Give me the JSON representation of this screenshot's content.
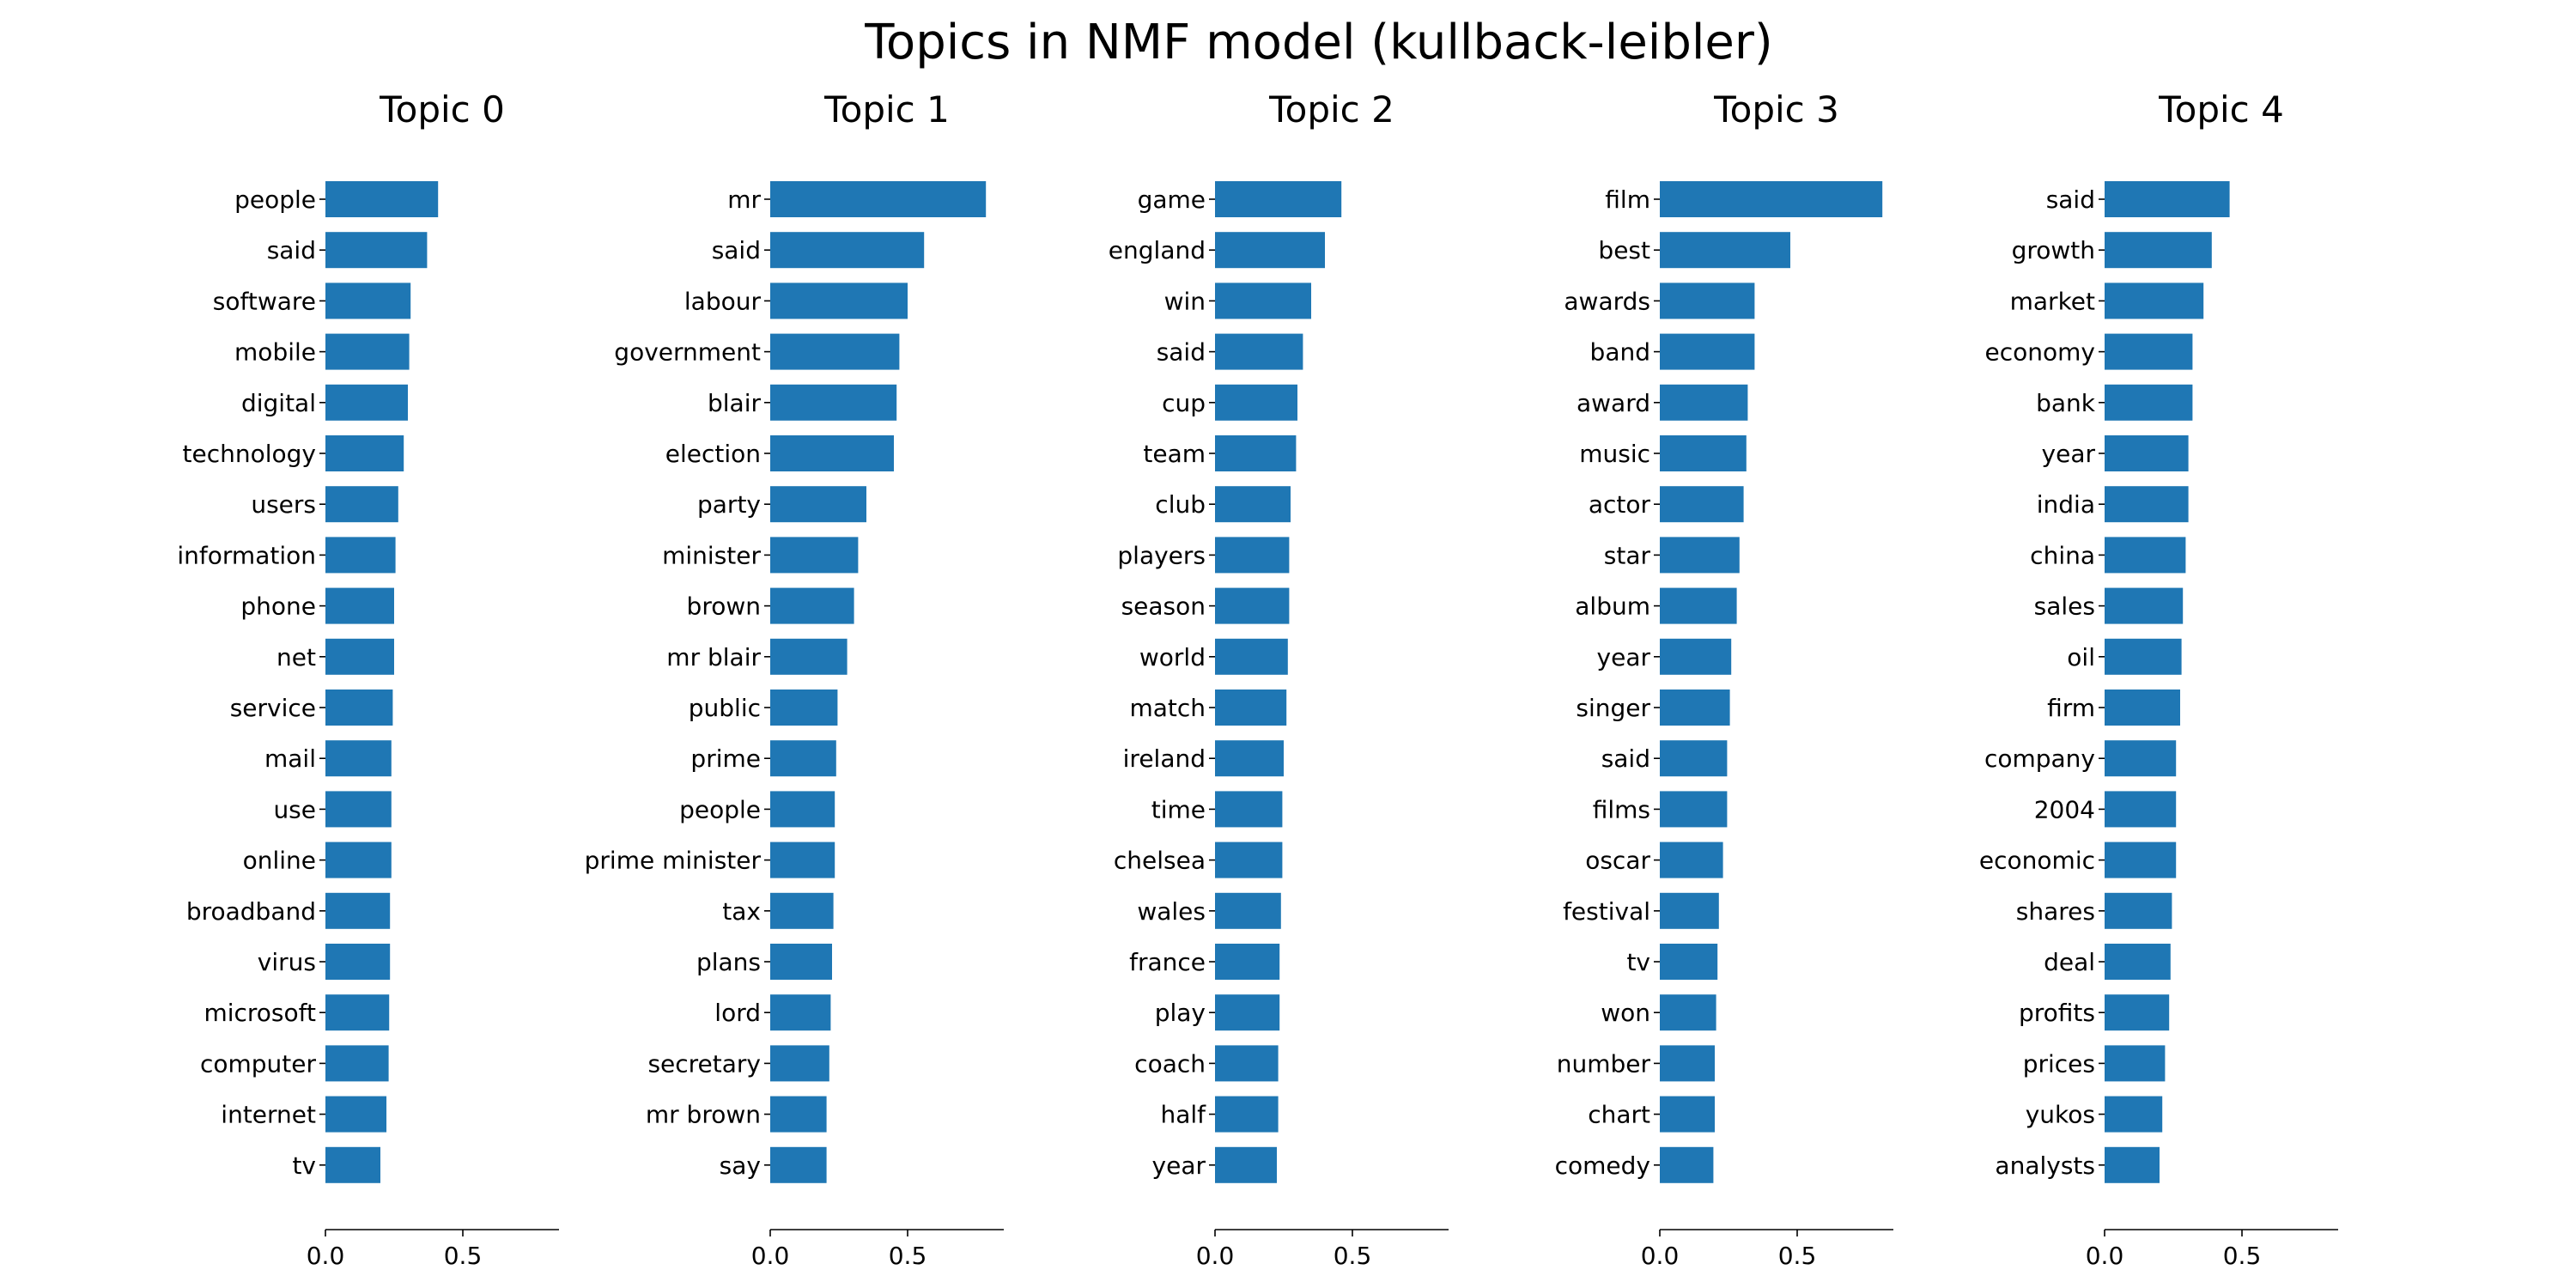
{
  "title": "Topics in NMF model (kullback-leibler)",
  "bar_color": "#1f77b4",
  "chart_data": [
    {
      "type": "bar",
      "orientation": "horizontal",
      "title": "Topic 0",
      "categories": [
        "people",
        "said",
        "software",
        "mobile",
        "digital",
        "technology",
        "users",
        "information",
        "phone",
        "net",
        "service",
        "mail",
        "use",
        "online",
        "broadband",
        "virus",
        "microsoft",
        "computer",
        "internet",
        "tv"
      ],
      "values": [
        0.41,
        0.37,
        0.31,
        0.305,
        0.3,
        0.285,
        0.265,
        0.255,
        0.25,
        0.25,
        0.245,
        0.24,
        0.24,
        0.24,
        0.235,
        0.235,
        0.232,
        0.23,
        0.222,
        0.2
      ],
      "xlim": [
        0,
        0.85
      ],
      "xticks": [
        "0.0",
        "0.5"
      ],
      "xlabel": "",
      "ylabel": ""
    },
    {
      "type": "bar",
      "orientation": "horizontal",
      "title": "Topic 1",
      "categories": [
        "mr",
        "said",
        "labour",
        "government",
        "blair",
        "election",
        "party",
        "minister",
        "brown",
        "mr blair",
        "public",
        "prime",
        "people",
        "prime minister",
        "tax",
        "plans",
        "lord",
        "secretary",
        "mr brown",
        "say"
      ],
      "values": [
        0.785,
        0.56,
        0.5,
        0.47,
        0.46,
        0.45,
        0.35,
        0.32,
        0.305,
        0.28,
        0.245,
        0.24,
        0.235,
        0.235,
        0.23,
        0.225,
        0.22,
        0.215,
        0.205,
        0.205
      ],
      "xlim": [
        0,
        0.85
      ],
      "xticks": [
        "0.0",
        "0.5"
      ],
      "xlabel": "",
      "ylabel": ""
    },
    {
      "type": "bar",
      "orientation": "horizontal",
      "title": "Topic 2",
      "categories": [
        "game",
        "england",
        "win",
        "said",
        "cup",
        "team",
        "club",
        "players",
        "season",
        "world",
        "match",
        "ireland",
        "time",
        "chelsea",
        "wales",
        "france",
        "play",
        "coach",
        "half",
        "year"
      ],
      "values": [
        0.46,
        0.4,
        0.35,
        0.32,
        0.3,
        0.295,
        0.275,
        0.27,
        0.27,
        0.265,
        0.26,
        0.25,
        0.245,
        0.245,
        0.24,
        0.235,
        0.235,
        0.23,
        0.23,
        0.225
      ],
      "xlim": [
        0,
        0.85
      ],
      "xticks": [
        "0.0",
        "0.5"
      ],
      "xlabel": "",
      "ylabel": ""
    },
    {
      "type": "bar",
      "orientation": "horizontal",
      "title": "Topic 3",
      "categories": [
        "film",
        "best",
        "awards",
        "band",
        "award",
        "music",
        "actor",
        "star",
        "album",
        "year",
        "singer",
        "said",
        "films",
        "oscar",
        "festival",
        "tv",
        "won",
        "number",
        "chart",
        "comedy"
      ],
      "values": [
        0.81,
        0.475,
        0.345,
        0.345,
        0.32,
        0.315,
        0.305,
        0.29,
        0.28,
        0.26,
        0.255,
        0.245,
        0.245,
        0.23,
        0.215,
        0.21,
        0.205,
        0.2,
        0.2,
        0.195
      ],
      "xlim": [
        0,
        0.85
      ],
      "xticks": [
        "0.0",
        "0.5"
      ],
      "xlabel": "",
      "ylabel": ""
    },
    {
      "type": "bar",
      "orientation": "horizontal",
      "title": "Topic 4",
      "categories": [
        "said",
        "growth",
        "market",
        "economy",
        "bank",
        "year",
        "india",
        "china",
        "sales",
        "oil",
        "firm",
        "company",
        "2004",
        "economic",
        "shares",
        "deal",
        "profits",
        "prices",
        "yukos",
        "analysts"
      ],
      "values": [
        0.455,
        0.39,
        0.36,
        0.32,
        0.32,
        0.305,
        0.305,
        0.295,
        0.285,
        0.28,
        0.275,
        0.26,
        0.26,
        0.26,
        0.245,
        0.24,
        0.235,
        0.22,
        0.21,
        0.2
      ],
      "xlim": [
        0,
        0.85
      ],
      "xticks": [
        "0.0",
        "0.5"
      ],
      "xlabel": "",
      "ylabel": ""
    }
  ]
}
